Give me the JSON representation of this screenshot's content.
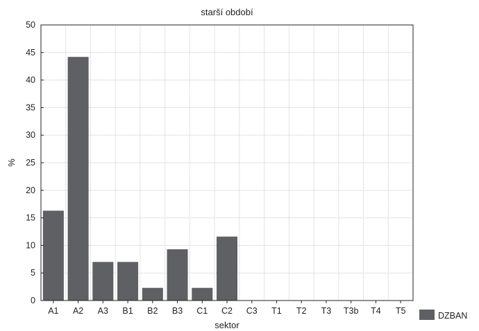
{
  "chart_data": {
    "type": "bar",
    "title": "starší období",
    "xlabel": "sektor",
    "ylabel": "%",
    "categories": [
      "A1",
      "A2",
      "A3",
      "B1",
      "B2",
      "B3",
      "C1",
      "C2",
      "C3",
      "T1",
      "T2",
      "T3",
      "T3b",
      "T4",
      "T5"
    ],
    "series": [
      {
        "name": "DZBAN",
        "values": [
          16.3,
          44.2,
          7.0,
          7.0,
          2.3,
          9.3,
          2.3,
          11.6,
          0,
          0,
          0,
          0,
          0,
          0,
          0
        ]
      }
    ],
    "ylim": [
      0,
      50
    ],
    "yticks": [
      "0",
      "5",
      "10",
      "15",
      "20",
      "25",
      "30",
      "35",
      "40",
      "45",
      "50"
    ],
    "grid": true,
    "legend_position": "bottom-right",
    "colors": {
      "bar": "#5f6063",
      "grid": "#c8c8c8",
      "axis": "#222222"
    }
  }
}
